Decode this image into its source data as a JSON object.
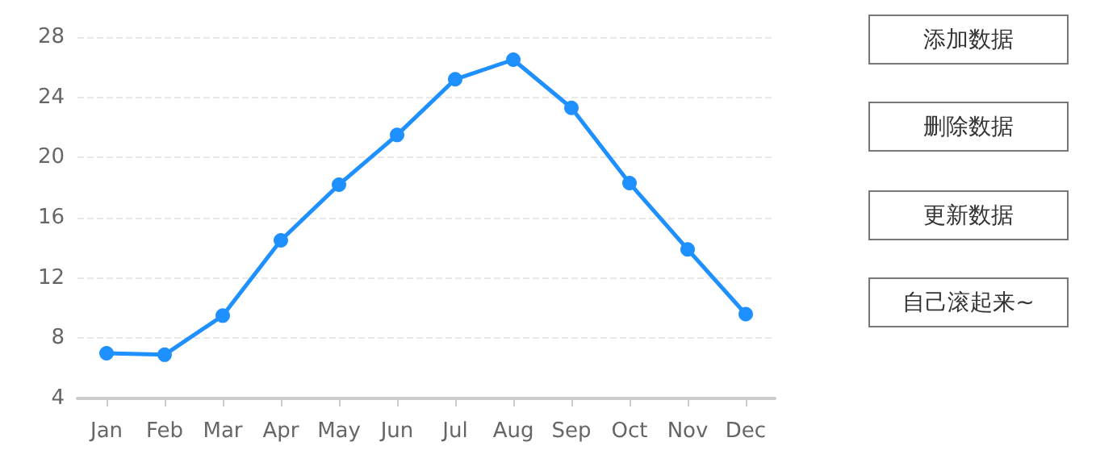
{
  "chart_data": [
    {
      "type": "line",
      "categories": [
        "Jan",
        "Feb",
        "Mar",
        "Apr",
        "May",
        "Jun",
        "Jul",
        "Aug",
        "Sep",
        "Oct",
        "Nov",
        "Dec"
      ],
      "series": [
        {
          "color": "#1e90ff",
          "values": [
            7.0,
            6.9,
            9.5,
            14.5,
            18.2,
            21.5,
            25.2,
            26.5,
            23.3,
            18.3,
            13.9,
            9.6
          ]
        }
      ],
      "ylim": [
        4,
        28
      ],
      "yticks": [
        4,
        8,
        12,
        16,
        20,
        24,
        28
      ],
      "grid": "y",
      "marker": "circle",
      "line_style": "solid"
    },
    {
      "type": "other",
      "annotations": [
        "添加数据",
        "删除数据",
        "更新数据",
        "自己滚起来~"
      ]
    }
  ]
}
